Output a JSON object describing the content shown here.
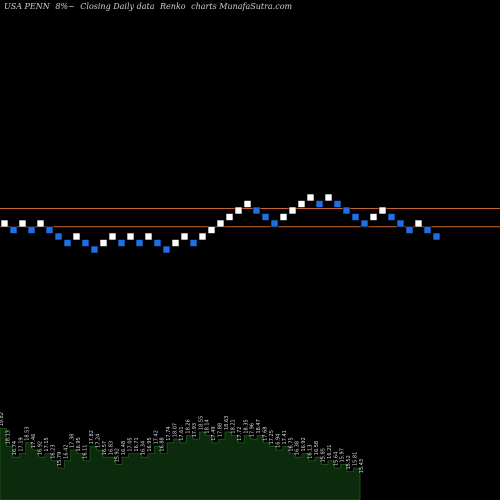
{
  "header": {
    "symbol": "USA PENN",
    "change": "8%~",
    "type": "Closing Daily data",
    "style": "Renko",
    "source": "charts MunafaSutra.com"
  },
  "colors": {
    "background": "#000000",
    "up_brick": "#ffffff",
    "down_brick": "#1e6fe6",
    "brick_border": "#000000",
    "line": "#c8652a",
    "volume_fill": "#0c2a0c",
    "volume_stroke": "#1f5a1f"
  },
  "chart_data": {
    "type": "renko",
    "ref_lines": [
      8,
      6.6
    ],
    "bricks": [
      {
        "level": 7,
        "dir": "up"
      },
      {
        "level": 6.5,
        "dir": "down"
      },
      {
        "level": 7,
        "dir": "up"
      },
      {
        "level": 6.5,
        "dir": "down"
      },
      {
        "level": 7,
        "dir": "up"
      },
      {
        "level": 6.5,
        "dir": "down"
      },
      {
        "level": 6,
        "dir": "down"
      },
      {
        "level": 5.5,
        "dir": "down"
      },
      {
        "level": 6,
        "dir": "up"
      },
      {
        "level": 5.5,
        "dir": "down"
      },
      {
        "level": 5,
        "dir": "down"
      },
      {
        "level": 5.5,
        "dir": "up"
      },
      {
        "level": 6,
        "dir": "up"
      },
      {
        "level": 5.5,
        "dir": "down"
      },
      {
        "level": 6,
        "dir": "up"
      },
      {
        "level": 5.5,
        "dir": "down"
      },
      {
        "level": 6,
        "dir": "up"
      },
      {
        "level": 5.5,
        "dir": "down"
      },
      {
        "level": 5,
        "dir": "down"
      },
      {
        "level": 5.5,
        "dir": "up"
      },
      {
        "level": 6,
        "dir": "up"
      },
      {
        "level": 5.5,
        "dir": "down"
      },
      {
        "level": 6,
        "dir": "up"
      },
      {
        "level": 6.5,
        "dir": "up"
      },
      {
        "level": 7,
        "dir": "up"
      },
      {
        "level": 7.5,
        "dir": "up"
      },
      {
        "level": 8,
        "dir": "up"
      },
      {
        "level": 8.5,
        "dir": "up"
      },
      {
        "level": 8,
        "dir": "down"
      },
      {
        "level": 7.5,
        "dir": "down"
      },
      {
        "level": 7,
        "dir": "down"
      },
      {
        "level": 7.5,
        "dir": "up"
      },
      {
        "level": 8,
        "dir": "up"
      },
      {
        "level": 8.5,
        "dir": "up"
      },
      {
        "level": 9,
        "dir": "up"
      },
      {
        "level": 8.5,
        "dir": "down"
      },
      {
        "level": 9,
        "dir": "up"
      },
      {
        "level": 8.5,
        "dir": "down"
      },
      {
        "level": 8,
        "dir": "down"
      },
      {
        "level": 7.5,
        "dir": "down"
      },
      {
        "level": 7,
        "dir": "down"
      },
      {
        "level": 7.5,
        "dir": "up"
      },
      {
        "level": 8,
        "dir": "up"
      },
      {
        "level": 7.5,
        "dir": "down"
      },
      {
        "level": 7,
        "dir": "down"
      },
      {
        "level": 6.5,
        "dir": "down"
      },
      {
        "level": 7,
        "dir": "up"
      },
      {
        "level": 6.5,
        "dir": "down"
      },
      {
        "level": 6,
        "dir": "down"
      }
    ],
    "volume_labels": [
      "19.82",
      "18.13",
      "16.74",
      "17.19",
      "18.53",
      "17.46",
      "16.92",
      "17.15",
      "16.23",
      "15.79",
      "16.42",
      "17.38",
      "16.95",
      "16.11",
      "17.82",
      "17.24",
      "16.57",
      "16.83",
      "15.92",
      "16.48",
      "17.05",
      "16.71",
      "16.34",
      "16.95",
      "17.42",
      "16.88",
      "17.74",
      "18.07",
      "17.61",
      "18.26",
      "17.93",
      "18.55",
      "18.14",
      "17.49",
      "17.88",
      "18.63",
      "18.21",
      "17.72",
      "18.35",
      "17.96",
      "18.47",
      "17.68",
      "17.25",
      "16.94",
      "17.41",
      "16.75",
      "16.38",
      "16.92",
      "16.13",
      "16.58",
      "15.85",
      "16.21",
      "15.64",
      "15.97",
      "15.52",
      "15.81",
      "15.43"
    ],
    "volume": [
      16,
      11,
      8,
      9,
      12,
      10,
      8,
      9,
      7,
      5,
      7,
      10,
      9,
      7,
      11,
      10,
      8,
      8,
      6,
      8,
      9,
      9,
      8,
      9,
      11,
      9,
      12,
      13,
      12,
      14,
      13,
      15,
      14,
      12,
      13,
      15,
      14,
      12,
      14,
      13,
      14,
      12,
      11,
      10,
      11,
      9,
      8,
      9,
      7,
      8,
      6,
      7,
      5,
      6,
      4,
      5,
      3
    ]
  }
}
